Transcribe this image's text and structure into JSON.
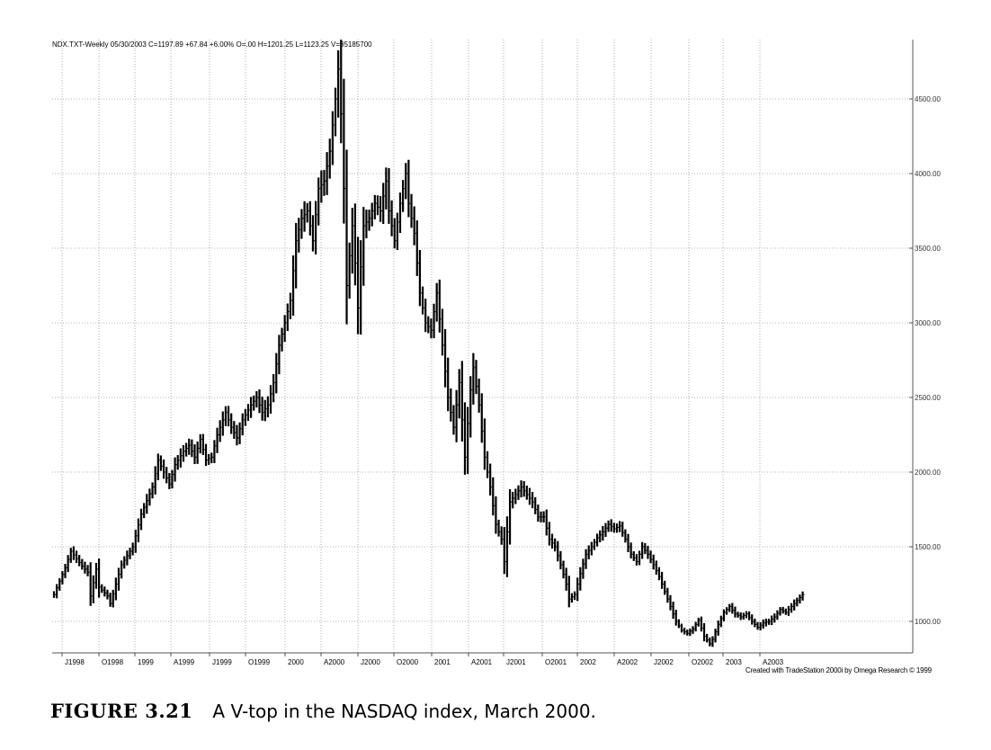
{
  "header_text": "NDX.TXT-Weekly  05/30/2003  C=1197.89  +67.84  +6.00%  O=.00  H=1201.25  L=1123.25  V=85185700",
  "credit_text": "Created with TradeStation 2000i by Omega Research © 1999",
  "caption": {
    "label": "FIGURE 3.21",
    "text": "A V-top in the NASDAQ index, March 2000."
  },
  "colors": {
    "bars": "#000000",
    "grid": "#9a9a9a",
    "background": "#ffffff"
  },
  "chart_data": {
    "type": "bar",
    "subtype": "ohlc-weekly-price-bars",
    "y_ticks": [
      1000,
      1500,
      2000,
      2500,
      3000,
      3500,
      4000,
      4500
    ],
    "y_tick_labels": [
      "1000.00",
      "1500.00",
      "2000.00",
      "2500.00",
      "3000.00",
      "3500.00",
      "4000.00",
      "4500.00"
    ],
    "ylim": [
      800,
      4850
    ],
    "x_labels": [
      "J1998",
      "O1998",
      "1999",
      "A1999",
      "J1999",
      "O1999",
      "2000",
      "A2000",
      "J2000",
      "O2000",
      "2001",
      "A2001",
      "J2001",
      "O2001",
      "2002",
      "A2002",
      "J2002",
      "O2002",
      "2003",
      "A2003"
    ],
    "grid": true,
    "anchors": [
      [
        0,
        1180
      ],
      [
        4,
        1360
      ],
      [
        6,
        1470
      ],
      [
        10,
        1370
      ],
      [
        12,
        1330
      ],
      [
        13,
        1170
      ],
      [
        15,
        1350
      ],
      [
        16,
        1230
      ],
      [
        19,
        1170
      ],
      [
        20,
        1120
      ],
      [
        24,
        1380
      ],
      [
        28,
        1500
      ],
      [
        31,
        1720
      ],
      [
        35,
        1900
      ],
      [
        37,
        2080
      ],
      [
        39,
        2000
      ],
      [
        41,
        1920
      ],
      [
        43,
        2050
      ],
      [
        46,
        2140
      ],
      [
        48,
        2180
      ],
      [
        50,
        2100
      ],
      [
        52,
        2220
      ],
      [
        54,
        2080
      ],
      [
        56,
        2100
      ],
      [
        58,
        2250
      ],
      [
        61,
        2400
      ],
      [
        63,
        2300
      ],
      [
        65,
        2230
      ],
      [
        67,
        2350
      ],
      [
        70,
        2450
      ],
      [
        72,
        2500
      ],
      [
        74,
        2400
      ],
      [
        76,
        2450
      ],
      [
        78,
        2600
      ],
      [
        80,
        2850
      ],
      [
        82,
        3000
      ],
      [
        84,
        3150
      ],
      [
        86,
        3550
      ],
      [
        88,
        3700
      ],
      [
        90,
        3750
      ],
      [
        92,
        3550
      ],
      [
        94,
        3900
      ],
      [
        96,
        3950
      ],
      [
        98,
        4150
      ],
      [
        100,
        4500
      ],
      [
        101,
        4700
      ],
      [
        102,
        4400
      ],
      [
        103,
        3900
      ],
      [
        104,
        3250
      ],
      [
        106,
        3650
      ],
      [
        107,
        3400
      ],
      [
        108,
        3100
      ],
      [
        110,
        3650
      ],
      [
        112,
        3700
      ],
      [
        114,
        3800
      ],
      [
        116,
        3750
      ],
      [
        118,
        3950
      ],
      [
        119,
        3750
      ],
      [
        121,
        3550
      ],
      [
        123,
        3800
      ],
      [
        125,
        4000
      ],
      [
        126,
        3800
      ],
      [
        128,
        3600
      ],
      [
        130,
        3200
      ],
      [
        132,
        3000
      ],
      [
        134,
        2950
      ],
      [
        136,
        3200
      ],
      [
        138,
        2850
      ],
      [
        140,
        2500
      ],
      [
        142,
        2300
      ],
      [
        144,
        2600
      ],
      [
        145,
        2350
      ],
      [
        146,
        2100
      ],
      [
        148,
        2550
      ],
      [
        149,
        2700
      ],
      [
        151,
        2450
      ],
      [
        153,
        2100
      ],
      [
        155,
        1900
      ],
      [
        157,
        1650
      ],
      [
        159,
        1550
      ],
      [
        160,
        1400
      ],
      [
        162,
        1800
      ],
      [
        164,
        1850
      ],
      [
        166,
        1900
      ],
      [
        168,
        1850
      ],
      [
        170,
        1800
      ],
      [
        172,
        1700
      ],
      [
        174,
        1700
      ],
      [
        176,
        1550
      ],
      [
        178,
        1500
      ],
      [
        180,
        1380
      ],
      [
        182,
        1250
      ],
      [
        183,
        1150
      ],
      [
        185,
        1180
      ],
      [
        187,
        1320
      ],
      [
        189,
        1450
      ],
      [
        191,
        1500
      ],
      [
        193,
        1560
      ],
      [
        195,
        1600
      ],
      [
        197,
        1650
      ],
      [
        199,
        1620
      ],
      [
        201,
        1640
      ],
      [
        203,
        1550
      ],
      [
        205,
        1450
      ],
      [
        207,
        1400
      ],
      [
        209,
        1500
      ],
      [
        211,
        1450
      ],
      [
        213,
        1380
      ],
      [
        215,
        1300
      ],
      [
        217,
        1200
      ],
      [
        219,
        1100
      ],
      [
        221,
        1000
      ],
      [
        223,
        940
      ],
      [
        225,
        920
      ],
      [
        227,
        950
      ],
      [
        229,
        1010
      ],
      [
        231,
        900
      ],
      [
        233,
        850
      ],
      [
        234,
        880
      ],
      [
        236,
        980
      ],
      [
        238,
        1060
      ],
      [
        240,
        1100
      ],
      [
        242,
        1050
      ],
      [
        244,
        1030
      ],
      [
        246,
        1050
      ],
      [
        248,
        1000
      ],
      [
        250,
        960
      ],
      [
        252,
        990
      ],
      [
        254,
        1000
      ],
      [
        256,
        1030
      ],
      [
        258,
        1080
      ],
      [
        260,
        1060
      ],
      [
        262,
        1100
      ],
      [
        264,
        1140
      ],
      [
        266,
        1180
      ]
    ]
  }
}
